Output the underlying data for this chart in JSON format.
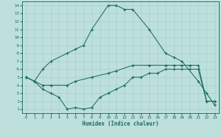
{
  "xlabel": "Humidex (Indice chaleur)",
  "xlim": [
    -0.5,
    23.5
  ],
  "ylim": [
    0.5,
    14.5
  ],
  "xticks": [
    0,
    1,
    2,
    3,
    4,
    5,
    6,
    7,
    8,
    9,
    10,
    11,
    12,
    13,
    14,
    15,
    16,
    17,
    18,
    19,
    20,
    21,
    22,
    23
  ],
  "yticks": [
    1,
    2,
    3,
    4,
    5,
    6,
    7,
    8,
    9,
    10,
    11,
    12,
    13,
    14
  ],
  "bg_color": "#bde0dc",
  "line_color": "#1e6b65",
  "grid_color": "#a0cccc",
  "line1_x": [
    0,
    1,
    2,
    3,
    5,
    6,
    7,
    8,
    10,
    11,
    12,
    13,
    15,
    17,
    18,
    19,
    21,
    22,
    23
  ],
  "line1_y": [
    5,
    4.5,
    6,
    7,
    8,
    8.5,
    9,
    11,
    14,
    14,
    13.5,
    13.5,
    11,
    8,
    7.5,
    7,
    4.5,
    3,
    1.5
  ],
  "line2_x": [
    0,
    1,
    2,
    3,
    5,
    6,
    8,
    10,
    11,
    13,
    15,
    17,
    18,
    19,
    20,
    21,
    22,
    23
  ],
  "line2_y": [
    5,
    4.5,
    4,
    4,
    4,
    4.5,
    5,
    5.5,
    5.8,
    6.5,
    6.5,
    6.5,
    6.5,
    6.5,
    6.5,
    6.5,
    2,
    2
  ],
  "line3_x": [
    0,
    1,
    2,
    3,
    4,
    5,
    6,
    7,
    8,
    9,
    10,
    11,
    12,
    13,
    14,
    15,
    16,
    17,
    18,
    19,
    20,
    21,
    22,
    23
  ],
  "line3_y": [
    5,
    4.5,
    3.5,
    3,
    2.5,
    1,
    1.2,
    1.0,
    1.2,
    2.5,
    3,
    3.5,
    4,
    5,
    5,
    5.5,
    5.5,
    6,
    6,
    6,
    6,
    6,
    2,
    2
  ]
}
